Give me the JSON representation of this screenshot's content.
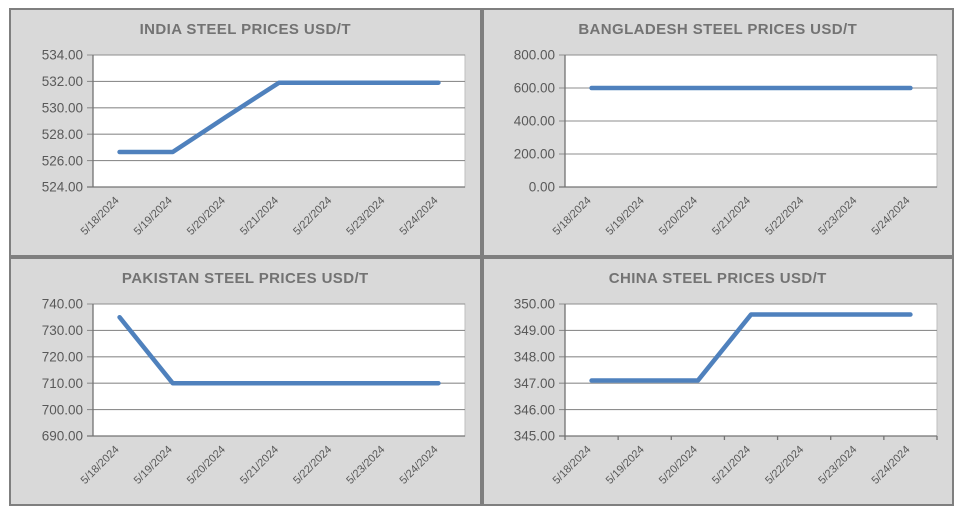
{
  "style": {
    "page_bg": "#ffffff",
    "panel_bg": "#d9d9d9",
    "panel_border": "#7f7f7f",
    "plot_bg": "#ffffff",
    "plot_border": "#bfbfbf",
    "grid_color": "#8e8e8e",
    "axis_color": "#737373",
    "line_color": "#4f81bd",
    "label_color": "#595959",
    "title_color": "#737373"
  },
  "chart_data": [
    {
      "id": "india",
      "type": "line",
      "title": "INDIA STEEL PRICES USD/T",
      "xlabel": "",
      "ylabel": "",
      "grid": true,
      "legend": false,
      "categories": [
        "5/18/2024",
        "5/19/2024",
        "5/20/2024",
        "5/21/2024",
        "5/22/2024",
        "5/23/2024",
        "5/24/2024"
      ],
      "values": [
        526.65,
        526.65,
        529.3,
        531.9,
        531.9,
        531.9,
        531.9
      ],
      "ylim": [
        524,
        534
      ],
      "yticks": [
        524,
        526,
        528,
        530,
        532,
        534
      ],
      "ytick_labels": [
        "524.00",
        "526.00",
        "528.00",
        "530.00",
        "532.00",
        "534.00"
      ],
      "x_axis_ticks": false
    },
    {
      "id": "bangladesh",
      "type": "line",
      "title": "BANGLADESH STEEL PRICES USD/T",
      "xlabel": "",
      "ylabel": "",
      "grid": true,
      "legend": false,
      "categories": [
        "5/18/2024",
        "5/19/2024",
        "5/20/2024",
        "5/21/2024",
        "5/22/2024",
        "5/23/2024",
        "5/24/2024"
      ],
      "values": [
        600,
        600,
        600,
        600,
        600,
        600,
        600
      ],
      "ylim": [
        0,
        800
      ],
      "yticks": [
        0,
        200,
        400,
        600,
        800
      ],
      "ytick_labels": [
        "0.00",
        "200.00",
        "400.00",
        "600.00",
        "800.00"
      ],
      "x_axis_ticks": false
    },
    {
      "id": "pakistan",
      "type": "line",
      "title": "PAKISTAN STEEL PRICES USD/T",
      "xlabel": "",
      "ylabel": "",
      "grid": true,
      "legend": false,
      "categories": [
        "5/18/2024",
        "5/19/2024",
        "5/20/2024",
        "5/21/2024",
        "5/22/2024",
        "5/23/2024",
        "5/24/2024"
      ],
      "values": [
        735,
        710,
        710,
        710,
        710,
        710,
        710
      ],
      "ylim": [
        690,
        740
      ],
      "yticks": [
        690,
        700,
        710,
        720,
        730,
        740
      ],
      "ytick_labels": [
        "690.00",
        "700.00",
        "710.00",
        "720.00",
        "730.00",
        "740.00"
      ],
      "x_axis_ticks": false
    },
    {
      "id": "china",
      "type": "line",
      "title": "CHINA STEEL PRICES USD/T",
      "xlabel": "",
      "ylabel": "",
      "grid": true,
      "legend": false,
      "categories": [
        "5/18/2024",
        "5/19/2024",
        "5/20/2024",
        "5/21/2024",
        "5/22/2024",
        "5/23/2024",
        "5/24/2024"
      ],
      "values": [
        347.1,
        347.1,
        347.1,
        349.6,
        349.6,
        349.6,
        349.6
      ],
      "ylim": [
        345,
        350
      ],
      "yticks": [
        345,
        346,
        347,
        348,
        349,
        350
      ],
      "ytick_labels": [
        "345.00",
        "346.00",
        "347.00",
        "348.00",
        "349.00",
        "350.00"
      ],
      "x_axis_ticks": true
    }
  ]
}
